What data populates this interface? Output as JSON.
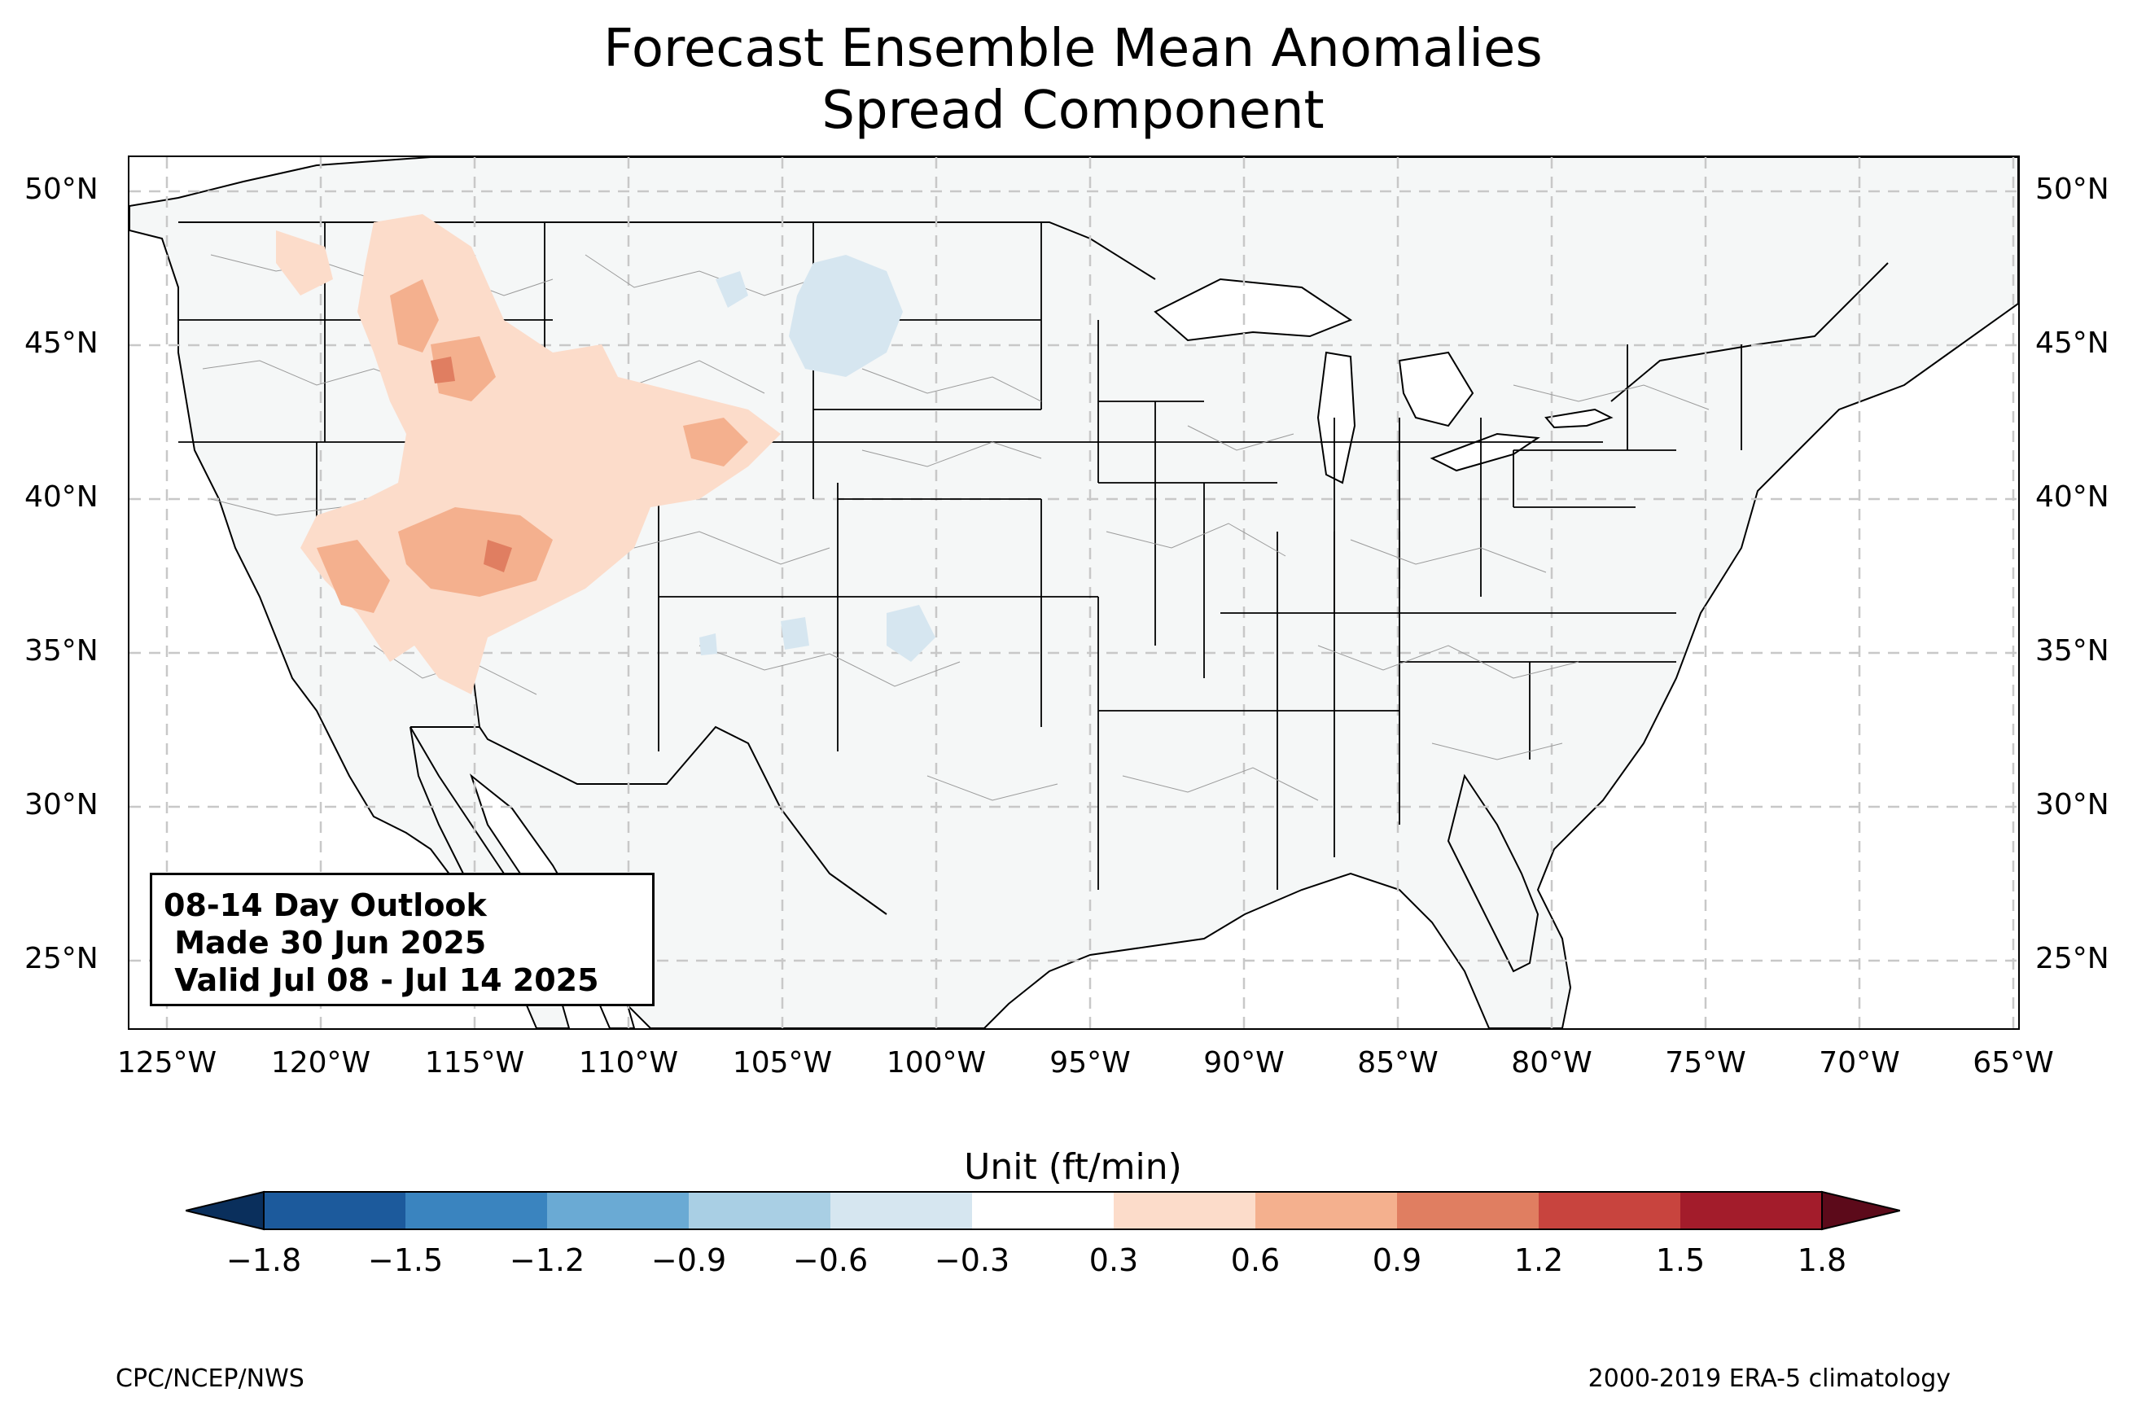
{
  "title": {
    "line1": "Forecast Ensemble Mean Anomalies",
    "line2": "Spread Component"
  },
  "map": {
    "lat_labels": [
      "50°N",
      "45°N",
      "40°N",
      "35°N",
      "30°N",
      "25°N"
    ],
    "lon_labels": [
      "125°W",
      "120°W",
      "115°W",
      "110°W",
      "105°W",
      "100°W",
      "95°W",
      "90°W",
      "85°W",
      "80°W",
      "75°W",
      "70°W",
      "65°W"
    ],
    "land_color": "#f5f7f7",
    "grid": "dashed"
  },
  "outlook_box": {
    "line1": "08-14 Day Outlook",
    "line2": " Made 30 Jun 2025",
    "line3": " Valid Jul 08 - Jul 14 2025"
  },
  "colorbar": {
    "title": "Unit (ft/min)",
    "tick_labels": [
      "−1.8",
      "−1.5",
      "−1.2",
      "−0.9",
      "−0.6",
      "−0.3",
      "0.3",
      "0.6",
      "0.9",
      "1.2",
      "1.5",
      "1.8"
    ],
    "colors": [
      "#1c5a9c",
      "#3a84bf",
      "#6aaad4",
      "#a9cfe4",
      "#d6e6f0",
      "#ffffff",
      "#fcdcca",
      "#f4b08e",
      "#e07e61",
      "#c8443e",
      "#a31c2b"
    ],
    "under_color": "#0a2f5c",
    "over_color": "#5c0a1a"
  },
  "footer": {
    "left": "CPC/NCEP/NWS",
    "right": "2000-2019 ERA-5 climatology"
  }
}
